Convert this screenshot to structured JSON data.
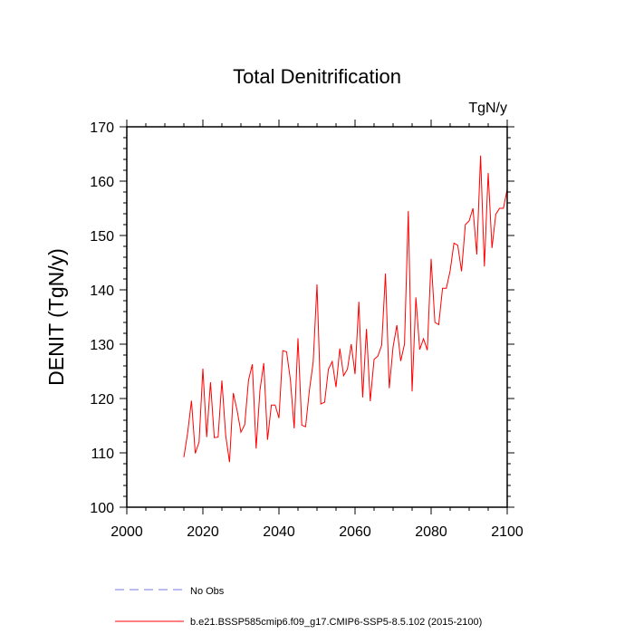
{
  "chart_data": {
    "type": "line",
    "title": "Total Denitrification",
    "units": "TgN/y",
    "xlabel": "",
    "ylabel": "DENIT  (TgN/y)",
    "xlim": [
      2000,
      2100
    ],
    "ylim": [
      100,
      170
    ],
    "xticks": [
      2000,
      2020,
      2040,
      2060,
      2080,
      2100
    ],
    "yticks": [
      100,
      110,
      120,
      130,
      140,
      150,
      160,
      170
    ],
    "grid": false,
    "series": [
      {
        "name": "b.e21.BSSP585cmip6.f09_g17.CMIP6-SSP5-8.5.102 (2015-2100)",
        "color": "#ff0000",
        "style": "solid",
        "x": [
          2015,
          2016,
          2017,
          2018,
          2019,
          2020,
          2021,
          2022,
          2023,
          2024,
          2025,
          2026,
          2027,
          2028,
          2029,
          2030,
          2031,
          2032,
          2033,
          2034,
          2035,
          2036,
          2037,
          2038,
          2039,
          2040,
          2041,
          2042,
          2043,
          2044,
          2045,
          2046,
          2047,
          2048,
          2049,
          2050,
          2051,
          2052,
          2053,
          2054,
          2055,
          2056,
          2057,
          2058,
          2059,
          2060,
          2061,
          2062,
          2063,
          2064,
          2065,
          2066,
          2067,
          2068,
          2069,
          2070,
          2071,
          2072,
          2073,
          2074,
          2075,
          2076,
          2077,
          2078,
          2079,
          2080,
          2081,
          2082,
          2083,
          2084,
          2085,
          2086,
          2087,
          2088,
          2089,
          2090,
          2091,
          2092,
          2093,
          2094,
          2095,
          2096,
          2097,
          2098,
          2099,
          2100
        ],
        "values": [
          109.2,
          113.7,
          119.6,
          109.9,
          112.0,
          125.5,
          112.9,
          123.0,
          112.8,
          112.9,
          123.3,
          113.2,
          108.3,
          121.0,
          117.8,
          113.8,
          115.2,
          123.4,
          126.3,
          110.8,
          121.5,
          126.5,
          112.4,
          118.8,
          118.8,
          116.4,
          128.8,
          128.6,
          123.5,
          114.5,
          131.1,
          115.1,
          114.8,
          121.5,
          126.7,
          141.0,
          119.0,
          119.3,
          125.4,
          126.8,
          122.1,
          129.2,
          124.2,
          125.4,
          130.0,
          124.5,
          137.8,
          120.2,
          132.8,
          119.5,
          127.2,
          127.8,
          129.8,
          143.0,
          121.9,
          129.5,
          133.5,
          126.9,
          130.0,
          154.5,
          121.3,
          138.6,
          129.0,
          131.0,
          128.9,
          145.7,
          134.0,
          133.6,
          140.3,
          140.3,
          143.5,
          148.6,
          148.2,
          143.4,
          152.0,
          152.7,
          155.0,
          146.5,
          164.7,
          144.3,
          161.5,
          147.7,
          153.9,
          155.0,
          155.0,
          158.5
        ]
      },
      {
        "name": "No Obs",
        "color": "#7777ee",
        "style": "dashed",
        "x": [],
        "values": []
      }
    ],
    "legend": "bottom"
  }
}
